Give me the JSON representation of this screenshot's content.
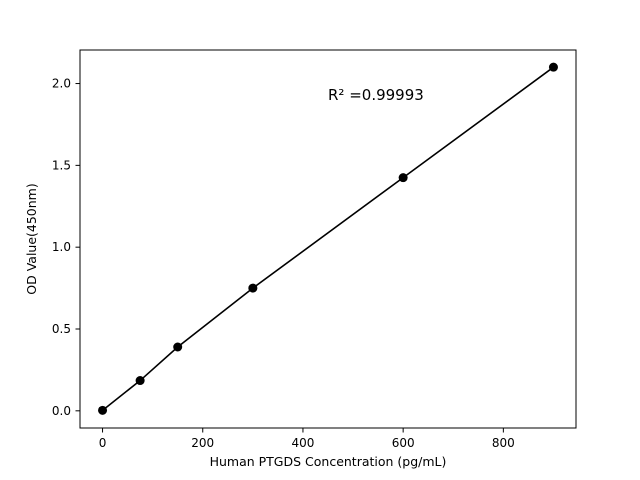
{
  "figure": {
    "background": "#ffffff"
  },
  "chart_data": {
    "type": "line",
    "title": "",
    "x": [
      0,
      75,
      150,
      300,
      600,
      900
    ],
    "y": [
      0.003,
      0.185,
      0.39,
      0.75,
      1.425,
      2.1
    ],
    "xlabel": "Human PTGDS Concentration (pg/mL)",
    "ylabel": "OD Value(450nm)",
    "xlim": [
      -45,
      945
    ],
    "ylim": [
      -0.105,
      2.205
    ],
    "xtick_values": [
      0,
      200,
      400,
      600,
      800
    ],
    "xtick_labels": [
      "0",
      "200",
      "400",
      "600",
      "800"
    ],
    "ytick_values": [
      0,
      0.5,
      1.0,
      1.5,
      2.0
    ],
    "ytick_labels": [
      "0.0",
      "0.5",
      "1.0",
      "1.5",
      "2.0"
    ],
    "grid": false,
    "legend": null,
    "line_color": "#000000",
    "marker_color": "#000000",
    "annotation": {
      "text": "R² =0.99993",
      "x": 450,
      "y": 1.9
    }
  }
}
